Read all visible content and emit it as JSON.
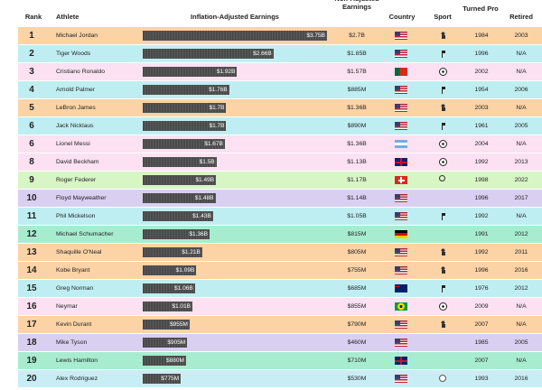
{
  "header": {
    "rank": "Rank",
    "athlete": "Athlete",
    "earnings": "Inflation-Adjusted Earnings",
    "non_adjusted": "Non-Adjusted Earnings",
    "country": "Country",
    "sport": "Sport",
    "turned_pro": "Turned Pro",
    "retired": "Retired"
  },
  "rows": [
    {
      "rank": 1,
      "athlete": "Michael Jordan",
      "earnings": 3.75,
      "earnings_label": "$3.75B",
      "non_adjusted": "$2.7B",
      "turned_pro": 1984,
      "retired": 2003
    },
    {
      "rank": 2,
      "athlete": "Tiger Woods",
      "earnings": 2.66,
      "earnings_label": "$2.66B",
      "non_adjusted": "$1.85B",
      "turned_pro": 1996,
      "retired": "N/A"
    },
    {
      "rank": 3,
      "athlete": "Cristiano Ronaldo",
      "earnings": 1.92,
      "earnings_label": "$1.92B",
      "non_adjusted": "$1.57B",
      "turned_pro": 2002,
      "retired": "N/A"
    },
    {
      "rank": 4,
      "athlete": "Arnold Palmer",
      "earnings": 1.76,
      "earnings_label": "$1.76B",
      "non_adjusted": "$885M",
      "turned_pro": 1954,
      "retired": 2006
    },
    {
      "rank": 5,
      "athlete": "LeBron James",
      "earnings": 1.7,
      "earnings_label": "$1.7B",
      "non_adjusted": "$1.36B",
      "turned_pro": 2003,
      "retired": "N/A"
    },
    {
      "rank": 6,
      "athlete": "Jack Nicklaus",
      "earnings": 1.7,
      "earnings_label": "$1.7B",
      "non_adjusted": "$890M",
      "turned_pro": 1961,
      "retired": 2005
    },
    {
      "rank": 6,
      "athlete": "Lionel Messi",
      "earnings": 1.67,
      "earnings_label": "$1.67B",
      "non_adjusted": "$1.36B",
      "turned_pro": 2004,
      "retired": "N/A"
    },
    {
      "rank": 8,
      "athlete": "David Beckham",
      "earnings": 1.5,
      "earnings_label": "$1.5B",
      "non_adjusted": "$1.13B",
      "turned_pro": 1992,
      "retired": 2013
    },
    {
      "rank": 9,
      "athlete": "Roger Federer",
      "earnings": 1.49,
      "earnings_label": "$1.49B",
      "non_adjusted": "$1.17B",
      "turned_pro": 1998,
      "retired": 2022
    },
    {
      "rank": 10,
      "athlete": "Floyd Mayweather",
      "earnings": 1.48,
      "earnings_label": "$1.48B",
      "non_adjusted": "$1.14B",
      "turned_pro": 1996,
      "retired": 2017
    },
    {
      "rank": 11,
      "athlete": "Phil Mickelson",
      "earnings": 1.43,
      "earnings_label": "$1.43B",
      "non_adjusted": "$1.05B",
      "turned_pro": 1992,
      "retired": "N/A"
    },
    {
      "rank": 12,
      "athlete": "Michael Schumacher",
      "earnings": 1.36,
      "earnings_label": "$1.36B",
      "non_adjusted": "$815M",
      "turned_pro": 1991,
      "retired": 2012
    },
    {
      "rank": 13,
      "athlete": "Shaquille O'Neal",
      "earnings": 1.21,
      "earnings_label": "$1.21B",
      "non_adjusted": "$805M",
      "turned_pro": 1992,
      "retired": 2011
    },
    {
      "rank": 14,
      "athlete": "Kobe Bryant",
      "earnings": 1.09,
      "earnings_label": "$1.09B",
      "non_adjusted": "$755M",
      "turned_pro": 1996,
      "retired": 2016
    },
    {
      "rank": 15,
      "athlete": "Greg Norman",
      "earnings": 1.06,
      "earnings_label": "$1.06B",
      "non_adjusted": "$685M",
      "turned_pro": 1976,
      "retired": 2012
    },
    {
      "rank": 16,
      "athlete": "Neymar",
      "earnings": 1.01,
      "earnings_label": "$1.01B",
      "non_adjusted": "$855M",
      "turned_pro": 2009,
      "retired": "N/A"
    },
    {
      "rank": 17,
      "athlete": "Kevin Durant",
      "earnings": 0.955,
      "earnings_label": "$955M",
      "non_adjusted": "$790M",
      "turned_pro": 2007,
      "retired": "N/A"
    },
    {
      "rank": 18,
      "athlete": "Mike Tyson",
      "earnings": 0.905,
      "earnings_label": "$905M",
      "non_adjusted": "$460M",
      "turned_pro": 1985,
      "retired": 2005
    },
    {
      "rank": 19,
      "athlete": "Lewis Hamilton",
      "earnings": 0.88,
      "earnings_label": "$880M",
      "non_adjusted": "$710M",
      "turned_pro": 2007,
      "retired": "N/A"
    },
    {
      "rank": 20,
      "athlete": "Alex Rodriguez",
      "earnings": 0.775,
      "earnings_label": "$775M",
      "non_adjusted": "$530M",
      "turned_pro": 1993,
      "retired": 2016
    }
  ]
}
